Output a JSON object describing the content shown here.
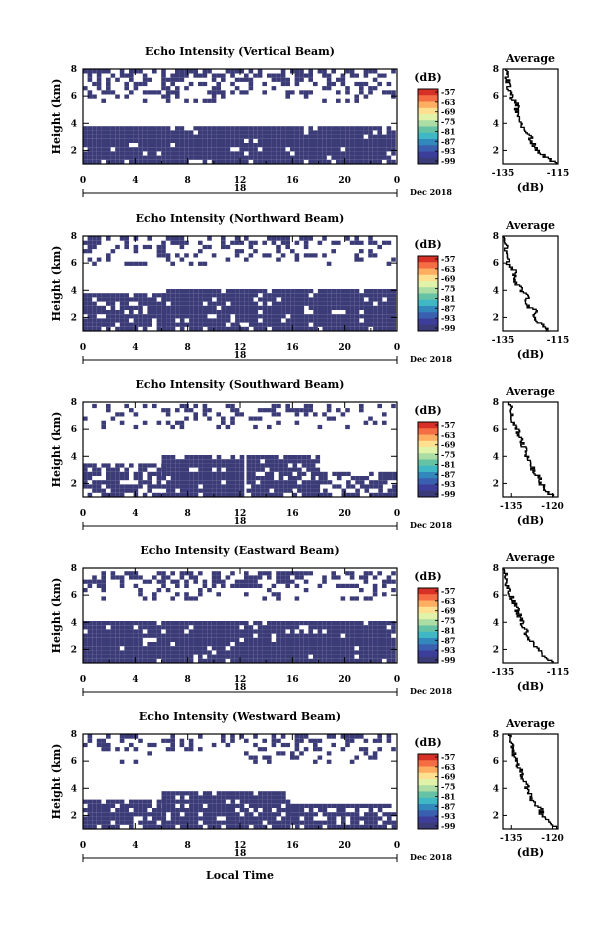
{
  "figure": {
    "x_axis_label": "Local Time",
    "date_label": "Dec 2018",
    "y_axis_label": "Height (km)",
    "colorbar_unit": "(dB)",
    "colorbar_ticks": [
      "-57",
      "-63",
      "-69",
      "-75",
      "-81",
      "-87",
      "-93",
      "-99"
    ],
    "colorbar_colors": [
      "#d73027",
      "#f46d43",
      "#fdae61",
      "#fee090",
      "#e0f3a8",
      "#abdda4",
      "#66c2a5",
      "#3fb7c4",
      "#3288bd",
      "#3a5fb0",
      "#3d3d9a",
      "#3b3b78"
    ],
    "cell_color": "#3b3b78",
    "hour_ticks": [
      "0",
      "4",
      "8",
      "12",
      "16",
      "20",
      "0"
    ],
    "day_label": "18",
    "height_ticks": [
      "2",
      "4",
      "6",
      "8"
    ],
    "avg_title": "Average",
    "avg_xlabel": "(dB)"
  },
  "chart_data": [
    {
      "type": "heatmap",
      "title": "Echo Intensity (Vertical Beam)",
      "xlabel": "",
      "ylabel": "Height (km)",
      "xlim": [
        0,
        24
      ],
      "ylim": [
        1,
        8
      ],
      "layers": [
        {
          "name": "lower",
          "from_km": 1.0,
          "to_km": 3.7,
          "start_h": 0,
          "end_h": 24,
          "density": 0.93
        },
        {
          "name": "upper",
          "from_km": 5.5,
          "to_km": 8.0,
          "start_h": 0,
          "end_h": 24,
          "density": 0.45
        }
      ],
      "profile": {
        "xlim": [
          -135,
          -115
        ],
        "xticks": [
          "-135",
          "-115"
        ],
        "ylim": [
          1,
          8
        ],
        "height_km": [
          1.0,
          1.5,
          2.0,
          2.5,
          3.0,
          3.5,
          4.0,
          4.5,
          5.0,
          5.5,
          6.0,
          6.5,
          7.0,
          7.5,
          8.0
        ],
        "db": [
          -115,
          -119,
          -122,
          -124,
          -125,
          -127,
          -128,
          -129,
          -130,
          -130,
          -132,
          -133,
          -133,
          -134,
          -134
        ]
      }
    },
    {
      "type": "heatmap",
      "title": "Echo Intensity (Northward Beam)",
      "xlabel": "",
      "ylabel": "Height (km)",
      "xlim": [
        0,
        24
      ],
      "ylim": [
        1,
        8
      ],
      "layers": [
        {
          "name": "lower-left",
          "from_km": 1.0,
          "to_km": 3.6,
          "start_h": 0,
          "end_h": 6,
          "density": 0.8
        },
        {
          "name": "lower-right",
          "from_km": 1.0,
          "to_km": 3.9,
          "start_h": 6,
          "end_h": 24,
          "density": 0.9
        },
        {
          "name": "upper",
          "from_km": 5.8,
          "to_km": 8.0,
          "start_h": 0,
          "end_h": 24,
          "density": 0.35
        }
      ],
      "profile": {
        "xlim": [
          -135,
          -115
        ],
        "xticks": [
          "-135",
          "-115"
        ],
        "ylim": [
          1,
          8
        ],
        "height_km": [
          1.0,
          1.5,
          2.0,
          2.5,
          3.0,
          3.5,
          4.0,
          4.5,
          5.0,
          5.5,
          6.0,
          6.5,
          7.0,
          7.5,
          8.0
        ],
        "db": [
          -118,
          -121,
          -124,
          -123,
          -127,
          -126,
          -128,
          -130,
          -131,
          -131,
          -133,
          -133,
          -134,
          -134,
          -135
        ]
      }
    },
    {
      "type": "heatmap",
      "title": "Echo Intensity (Southward Beam)",
      "xlabel": "",
      "ylabel": "Height (km)",
      "xlim": [
        0,
        24
      ],
      "ylim": [
        1,
        8
      ],
      "layers": [
        {
          "name": "lower-a",
          "from_km": 1.0,
          "to_km": 3.3,
          "start_h": 0,
          "end_h": 6,
          "density": 0.75
        },
        {
          "name": "lower-b",
          "from_km": 1.0,
          "to_km": 3.9,
          "start_h": 6,
          "end_h": 12,
          "density": 0.88
        },
        {
          "name": "lower-c",
          "from_km": 1.0,
          "to_km": 3.8,
          "start_h": 12.5,
          "end_h": 18,
          "density": 0.85
        },
        {
          "name": "lower-d",
          "from_km": 1.0,
          "to_km": 2.6,
          "start_h": 18,
          "end_h": 24,
          "density": 0.55
        },
        {
          "name": "upper",
          "from_km": 6.0,
          "to_km": 8.0,
          "start_h": 0,
          "end_h": 24,
          "density": 0.3
        }
      ],
      "profile": {
        "xlim": [
          -138,
          -118
        ],
        "xticks": [
          "-135",
          "-120"
        ],
        "ylim": [
          1,
          8
        ],
        "height_km": [
          1.0,
          1.5,
          2.0,
          2.5,
          3.0,
          3.5,
          4.0,
          4.5,
          5.0,
          5.5,
          6.0,
          6.5,
          7.0,
          7.5,
          8.0
        ],
        "db": [
          -119,
          -122,
          -124,
          -125,
          -127,
          -128,
          -129,
          -130,
          -131,
          -132,
          -133,
          -134,
          -135,
          -135,
          -136
        ]
      }
    },
    {
      "type": "heatmap",
      "title": "Echo Intensity (Eastward Beam)",
      "xlabel": "",
      "ylabel": "Height (km)",
      "xlim": [
        0,
        24
      ],
      "ylim": [
        1,
        8
      ],
      "layers": [
        {
          "name": "lower",
          "from_km": 1.0,
          "to_km": 3.9,
          "start_h": 0,
          "end_h": 24,
          "density": 0.92
        },
        {
          "name": "upper",
          "from_km": 5.6,
          "to_km": 8.0,
          "start_h": 0,
          "end_h": 24,
          "density": 0.45
        }
      ],
      "profile": {
        "xlim": [
          -135,
          -115
        ],
        "xticks": [
          "-135",
          "-115"
        ],
        "ylim": [
          1,
          8
        ],
        "height_km": [
          1.0,
          1.5,
          2.0,
          2.5,
          3.0,
          3.5,
          4.0,
          4.5,
          5.0,
          5.5,
          6.0,
          6.5,
          7.0,
          7.5,
          8.0
        ],
        "db": [
          -116,
          -120,
          -122,
          -124,
          -126,
          -127,
          -128,
          -129,
          -130,
          -131,
          -132,
          -133,
          -134,
          -134,
          -135
        ]
      }
    },
    {
      "type": "heatmap",
      "title": "Echo Intensity (Westward Beam)",
      "xlabel": "Local Time",
      "ylabel": "Height (km)",
      "xlim": [
        0,
        24
      ],
      "ylim": [
        1,
        8
      ],
      "layers": [
        {
          "name": "lower-a",
          "from_km": 1.0,
          "to_km": 3.0,
          "start_h": 0,
          "end_h": 6,
          "density": 0.8
        },
        {
          "name": "lower-b",
          "from_km": 1.0,
          "to_km": 3.7,
          "start_h": 6,
          "end_h": 15.5,
          "density": 0.88
        },
        {
          "name": "lower-c",
          "from_km": 1.0,
          "to_km": 2.8,
          "start_h": 15.5,
          "end_h": 24,
          "density": 0.7
        },
        {
          "name": "upper",
          "from_km": 5.8,
          "to_km": 8.0,
          "start_h": 0,
          "end_h": 24,
          "density": 0.28
        }
      ],
      "profile": {
        "xlim": [
          -138,
          -118
        ],
        "xticks": [
          "-135",
          "-120"
        ],
        "ylim": [
          1,
          8
        ],
        "height_km": [
          1.0,
          1.5,
          2.0,
          2.5,
          3.0,
          3.5,
          4.0,
          4.5,
          5.0,
          5.5,
          6.0,
          6.5,
          7.0,
          7.5,
          8.0
        ],
        "db": [
          -118,
          -121,
          -124,
          -124,
          -127,
          -128,
          -129,
          -130,
          -131,
          -132,
          -133,
          -134,
          -135,
          -135,
          -136
        ]
      }
    }
  ]
}
